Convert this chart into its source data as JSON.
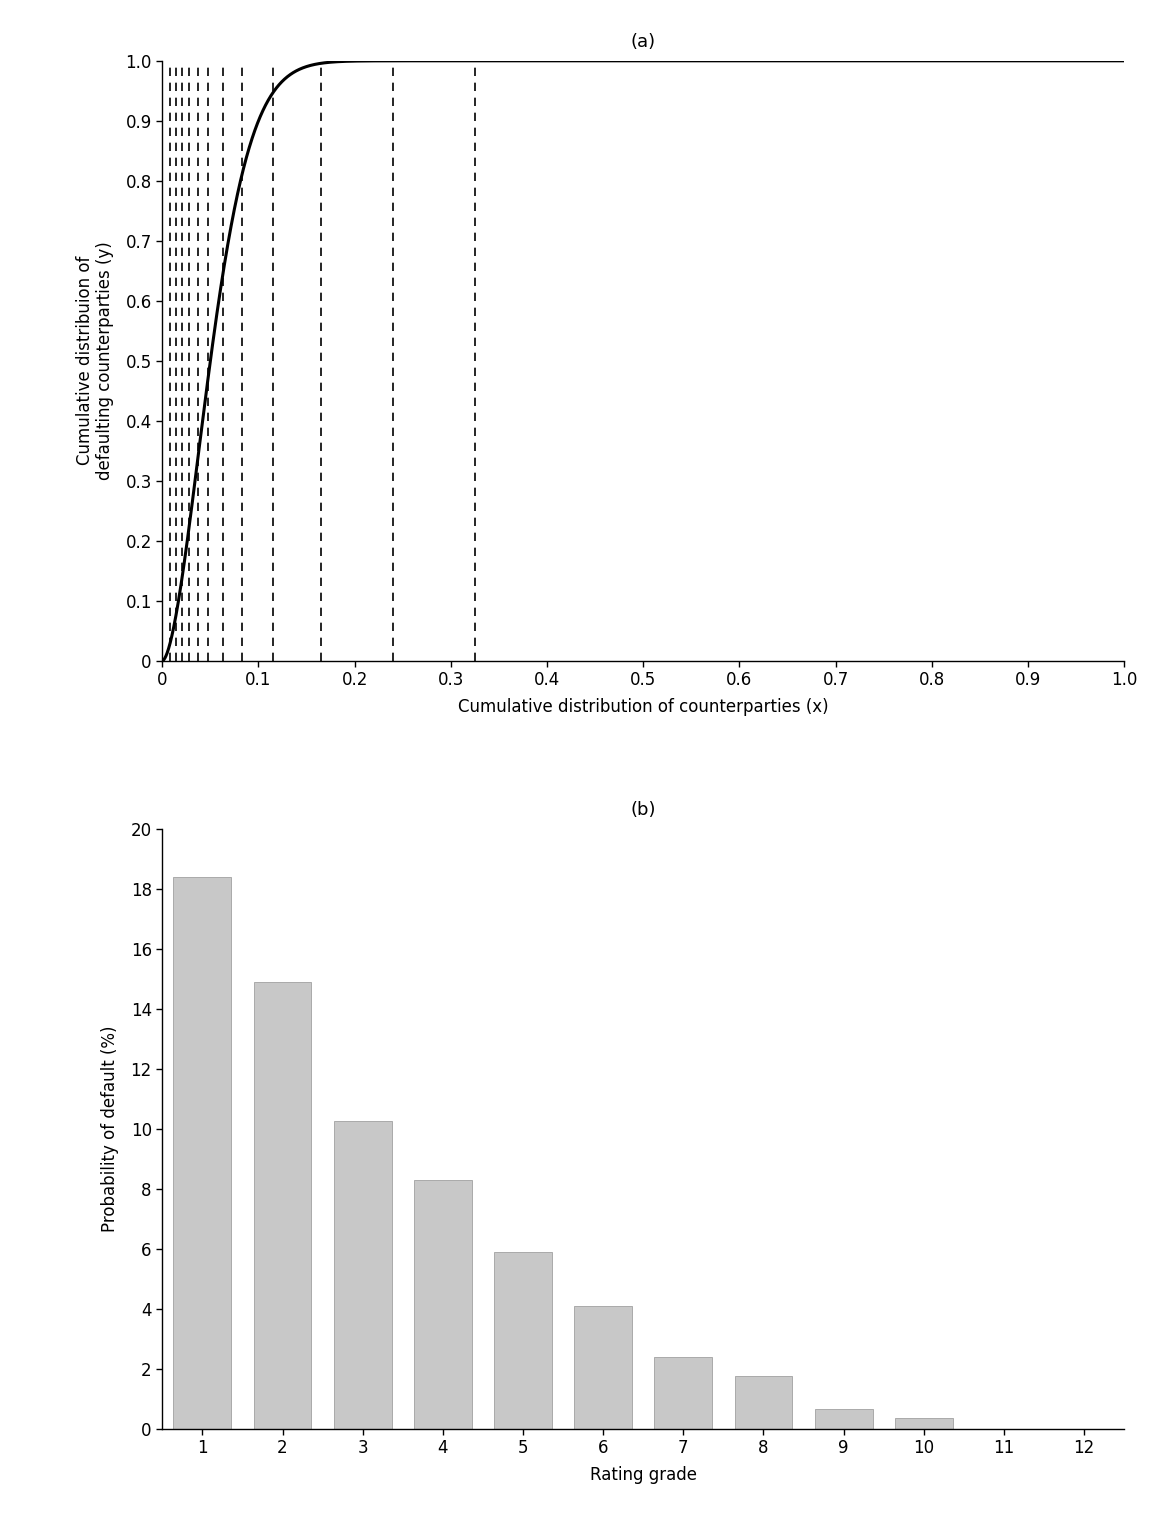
{
  "cap_dashed_lines": [
    0.008,
    0.014,
    0.021,
    0.028,
    0.037,
    0.048,
    0.063,
    0.083,
    0.115,
    0.165,
    0.24,
    0.325
  ],
  "bar_values": [
    18.4,
    14.9,
    10.25,
    8.3,
    5.9,
    4.1,
    2.4,
    1.75,
    0.65,
    0.35,
    0.0,
    0.0
  ],
  "bar_categories": [
    "1",
    "2",
    "3",
    "4",
    "5",
    "6",
    "7",
    "8",
    "9",
    "10",
    "11",
    "12"
  ],
  "bar_color": "#c8c8c8",
  "bar_edgecolor": "#aaaaaa",
  "cap_line_color": "#000000",
  "dashed_line_color": "#000000",
  "title_a": "(a)",
  "title_b": "(b)",
  "xlabel_a": "Cumulative distribution of counterparties (x)",
  "ylabel_a": "Cumulative distribuion of\ndefaulting counterparties (y)",
  "xlabel_b": "Rating grade",
  "ylabel_b": "Probability of default (%)",
  "xlim_a": [
    0.0,
    1.0
  ],
  "ylim_a": [
    0.0,
    1.0
  ],
  "xlim_b": [
    0.5,
    12.5
  ],
  "ylim_b": [
    0.0,
    20.0
  ],
  "xticks_a": [
    0.0,
    0.1,
    0.2,
    0.3,
    0.4,
    0.5,
    0.6,
    0.7,
    0.8,
    0.9,
    1.0
  ],
  "yticks_a": [
    0.0,
    0.1,
    0.2,
    0.3,
    0.4,
    0.5,
    0.6,
    0.7,
    0.8,
    0.9,
    1.0
  ],
  "yticks_b": [
    0,
    2,
    4,
    6,
    8,
    10,
    12,
    14,
    16,
    18,
    20
  ],
  "cap_alpha": 30.0,
  "background_color": "#ffffff"
}
